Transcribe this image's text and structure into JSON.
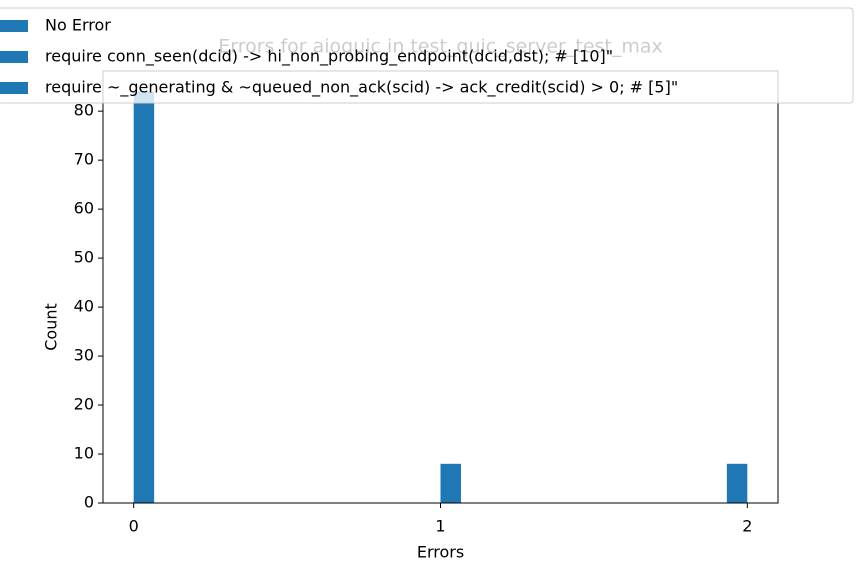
{
  "chart_data": {
    "type": "histogram",
    "title": "Errors for aioquic in test_quic_server_test_max",
    "xlabel": "Errors",
    "ylabel": "Count",
    "bins": [
      0,
      0.0667,
      0.1333,
      0.2,
      0.2667,
      0.3333,
      0.4,
      0.4667,
      0.5333,
      0.6,
      0.6667,
      0.7333,
      0.8,
      0.8667,
      0.9333,
      1,
      1.0667,
      1.1333,
      1.2,
      1.2667,
      1.3333,
      1.4,
      1.4667,
      1.5333,
      1.6,
      1.6667,
      1.7333,
      1.8,
      1.8667,
      1.9333,
      2
    ],
    "counts": [
      84,
      0,
      0,
      0,
      0,
      0,
      0,
      0,
      0,
      0,
      0,
      0,
      0,
      0,
      0,
      8,
      0,
      0,
      0,
      0,
      0,
      0,
      0,
      0,
      0,
      0,
      0,
      0,
      0,
      8
    ],
    "color": "#1f77b4",
    "legend": [
      "No Error",
      "require conn_seen(dcid) -> hi_non_probing_endpoint(dcid,dst);  # [10]\"",
      "require ~_generating & ~queued_non_ack(scid) -> ack_credit(scid) > 0;  # [5]\""
    ],
    "legend_position": "upper left",
    "xlim": [
      -0.1,
      2.1
    ],
    "xticks": [
      0,
      1,
      2
    ],
    "ylim": [
      0,
      88.2
    ],
    "yticks": [
      0,
      10,
      20,
      30,
      40,
      50,
      60,
      70,
      80
    ]
  }
}
